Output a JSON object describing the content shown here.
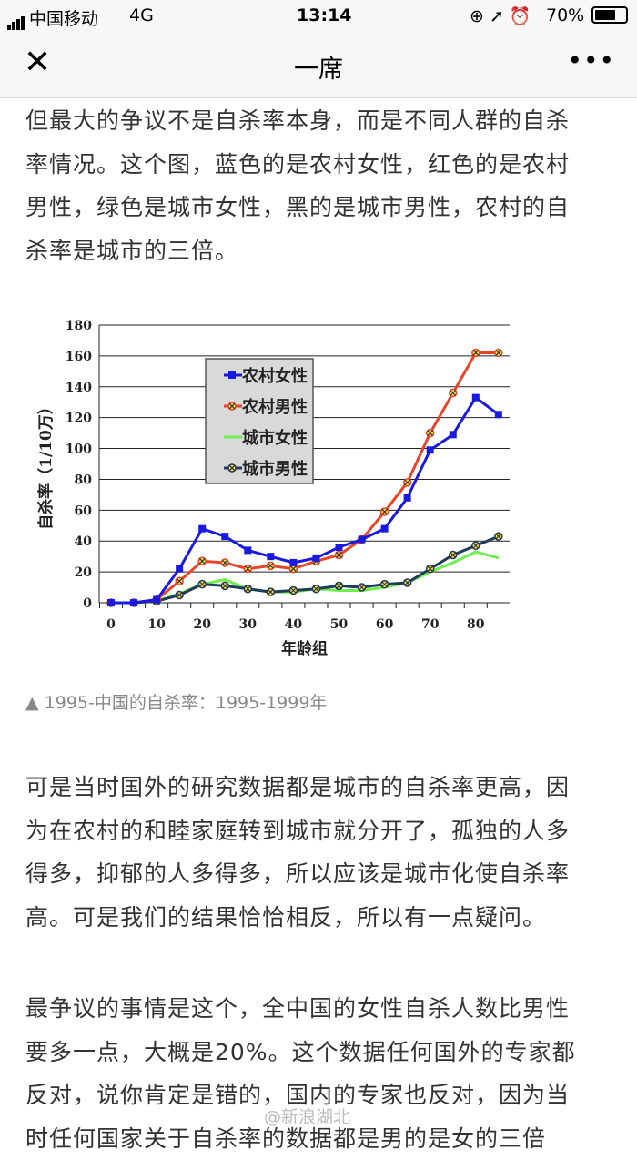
{
  "status_bar": {
    "carrier": "中国移动",
    "network": "4G",
    "time": "13:14",
    "battery": "70%",
    "battery_level": 0.7
  },
  "nav": {
    "title": "一席",
    "close_icon": "close-icon",
    "more_icon": "more-icon"
  },
  "paragraphs": [
    [
      "但最大的争议不是自杀率本身，而是不同人群的自杀",
      "率情况。这个图，蓝色的是农村女性，红色的是农村",
      "男性，绿色是城市女性，黑的是城市男性，农村的自",
      "杀率是城市的三倍。"
    ],
    [
      "可是当时国外的研究数据都是城市的自杀率更高，因",
      "为在农村的和睦家庭转到城市就分开了，孤独的人多",
      "得多，抑郁的人多得多，所以应该是城市化使自杀率",
      "高。可是我们的结果恰恰相反，所以有一点疑问。"
    ],
    [
      "最争议的事情是这个，全中国的女性自杀人数比男性",
      "要多一点，大概是20%。这个数据任何国外的专家都",
      "反对，说你肯定是错的，国内的专家也反对，因为当",
      "时任何国家关于自杀率的数据都是男的是女的三倍"
    ]
  ],
  "caption": "▲ 1995-中国的自杀率：1995-1999年",
  "watermark": "@新浪湖北",
  "chart_data": {
    "type": "line",
    "xlabel": "年龄组",
    "ylabel": "自杀率（1/10万）",
    "ylim": [
      0,
      180
    ],
    "yticks": [
      "0",
      "20",
      "40",
      "60",
      "80",
      "100",
      "120",
      "140",
      "160",
      "180"
    ],
    "xticks": [
      "0",
      "10",
      "20",
      "30",
      "40",
      "50",
      "60",
      "70",
      "80"
    ],
    "grid": true,
    "legend": "top-center",
    "x": [
      0,
      5,
      10,
      15,
      20,
      25,
      30,
      35,
      40,
      45,
      50,
      55,
      60,
      65,
      70,
      75,
      80,
      85
    ],
    "series": [
      {
        "name": "农村女性",
        "color": "#1a1adf",
        "marker": "square",
        "values": [
          0,
          0,
          2,
          22,
          48,
          43,
          34,
          30,
          26,
          29,
          36,
          41,
          48,
          68,
          99,
          109,
          133,
          122
        ]
      },
      {
        "name": "农村男性",
        "color": "#e8442a",
        "marker": "x",
        "values": [
          0,
          0,
          2,
          14,
          27,
          26,
          22,
          24,
          22,
          27,
          31,
          41,
          59,
          78,
          110,
          136,
          162,
          162
        ]
      },
      {
        "name": "城市女性",
        "color": "#6cf04a",
        "marker": "none",
        "values": [
          0,
          0,
          1,
          6,
          12,
          15,
          9,
          7,
          7,
          9,
          8,
          8,
          10,
          13,
          20,
          26,
          33,
          29
        ]
      },
      {
        "name": "城市男性",
        "color": "#1f3a5a",
        "marker": "x",
        "values": [
          0,
          0,
          1,
          5,
          12,
          11,
          9,
          7,
          8,
          9,
          11,
          10,
          12,
          13,
          22,
          31,
          37,
          43
        ]
      }
    ]
  }
}
